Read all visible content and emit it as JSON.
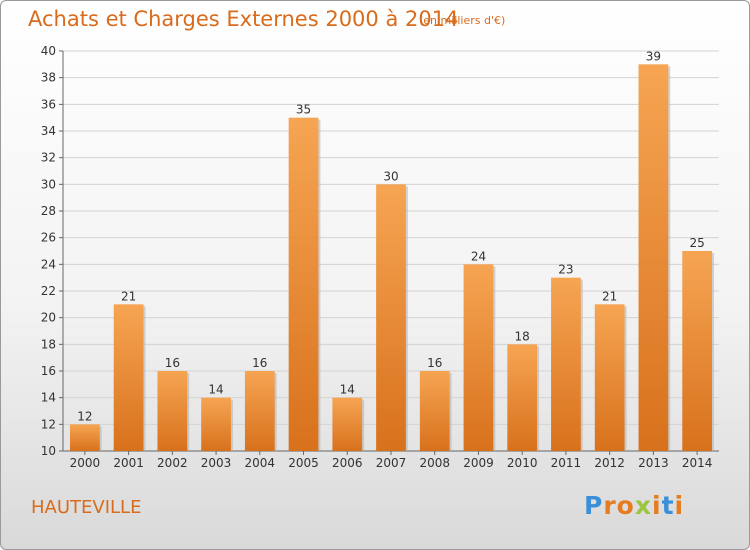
{
  "chart_data": {
    "type": "bar",
    "title": "Achats et Charges Externes 2000 à 2014",
    "subtitle": "(en milliers d'€)",
    "categories": [
      "2000",
      "2001",
      "2002",
      "2003",
      "2004",
      "2005",
      "2006",
      "2007",
      "2008",
      "2009",
      "2010",
      "2011",
      "2012",
      "2013",
      "2014"
    ],
    "values": [
      12,
      21,
      16,
      14,
      16,
      35,
      14,
      30,
      16,
      24,
      18,
      23,
      21,
      39,
      25
    ],
    "ylim": [
      10,
      40
    ],
    "yticks": [
      10,
      12,
      14,
      16,
      18,
      20,
      22,
      24,
      26,
      28,
      30,
      32,
      34,
      36,
      38,
      40
    ],
    "grid": true,
    "bar_color": "#f0892e"
  },
  "footer": {
    "place": "HAUTEVILLE",
    "logo": {
      "letters": [
        "P",
        "r",
        "o",
        "x",
        "i",
        "t",
        "i"
      ],
      "colors": [
        "#3b8fd9",
        "#e57c1f",
        "#e57c1f",
        "#9bc53d",
        "#e57c1f",
        "#3b8fd9",
        "#e57c1f"
      ]
    }
  }
}
